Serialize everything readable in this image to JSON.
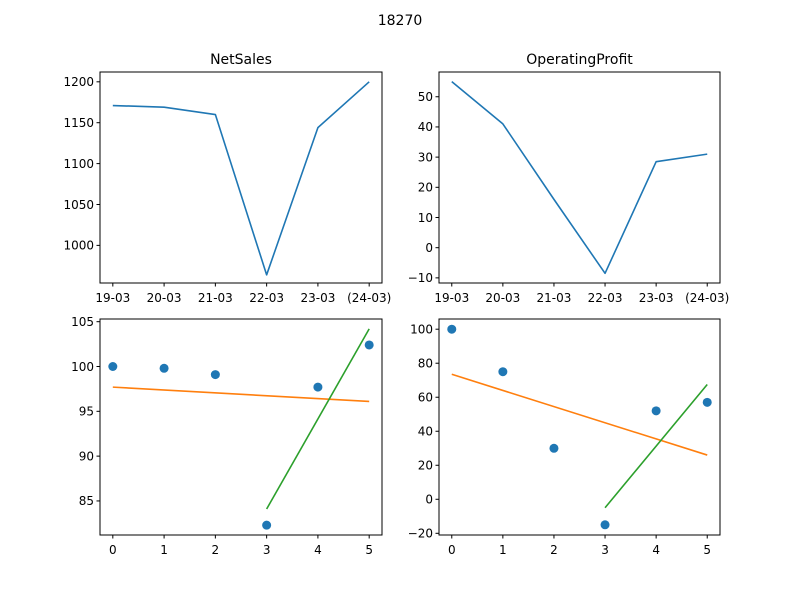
{
  "figure": {
    "suptitle": "18270"
  },
  "colors": {
    "series_line": "#1f77b4",
    "scatter_points": "#1f77b4",
    "fit_line_all": "#ff7f0e",
    "fit_line_recent": "#2ca02c"
  },
  "chart_data": [
    {
      "type": "line",
      "title": "NetSales",
      "xlabel": "",
      "ylabel": "",
      "categories": [
        "19-03",
        "20-03",
        "21-03",
        "22-03",
        "23-03",
        "(24-03)"
      ],
      "series": [
        {
          "values": [
            1171,
            1169,
            1160,
            964,
            1144,
            1200
          ]
        }
      ],
      "ylim": [
        954,
        1212
      ],
      "yticks": [
        1000,
        1050,
        1100,
        1150,
        1200
      ],
      "grid": false
    },
    {
      "type": "line",
      "title": "OperatingProfit",
      "xlabel": "",
      "ylabel": "",
      "categories": [
        "19-03",
        "20-03",
        "21-03",
        "22-03",
        "23-03",
        "(24-03)"
      ],
      "series": [
        {
          "values": [
            55,
            41,
            16,
            -8.5,
            28.5,
            31
          ]
        }
      ],
      "ylim": [
        -11.7,
        58.2
      ],
      "yticks": [
        -10,
        0,
        10,
        20,
        30,
        40,
        50
      ],
      "grid": false
    },
    {
      "type": "scatter",
      "title": "",
      "xlabel": "",
      "ylabel": "",
      "x": [
        0,
        1,
        2,
        3,
        4,
        5
      ],
      "y": [
        100,
        99.8,
        99.1,
        82.3,
        97.7,
        102.4
      ],
      "lines": [
        {
          "x": [
            0,
            5
          ],
          "y": [
            97.7,
            96.1
          ]
        },
        {
          "x": [
            3,
            5
          ],
          "y": [
            84.1,
            104.2
          ]
        }
      ],
      "xlim": [
        -0.25,
        5.25
      ],
      "ylim": [
        81.2,
        105.3
      ],
      "xticks": [
        0,
        1,
        2,
        3,
        4,
        5
      ],
      "yticks": [
        85,
        90,
        95,
        100,
        105
      ],
      "grid": false
    },
    {
      "type": "scatter",
      "title": "",
      "xlabel": "",
      "ylabel": "",
      "x": [
        0,
        1,
        2,
        3,
        4,
        5
      ],
      "y": [
        100,
        75,
        30,
        -15,
        52,
        57
      ],
      "lines": [
        {
          "x": [
            0,
            5
          ],
          "y": [
            73.5,
            26
          ]
        },
        {
          "x": [
            3,
            5
          ],
          "y": [
            -5,
            67.5
          ]
        }
      ],
      "xlim": [
        -0.25,
        5.25
      ],
      "ylim": [
        -21,
        106
      ],
      "xticks": [
        0,
        1,
        2,
        3,
        4,
        5
      ],
      "yticks": [
        -20,
        0,
        20,
        40,
        60,
        80,
        100
      ],
      "grid": false
    }
  ]
}
